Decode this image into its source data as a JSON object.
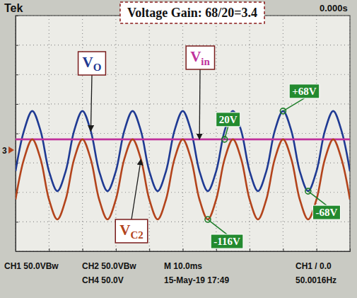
{
  "chart_data": {
    "type": "line",
    "title": "Voltage Gain: 68/20=3.4",
    "x": [
      0,
      2.5,
      5,
      7.5,
      10,
      12.5,
      15,
      17.5,
      20,
      22.5,
      25,
      27.5,
      30,
      32.5,
      35,
      37.5,
      40,
      42.5,
      45,
      47.5,
      50,
      52.5,
      55,
      57.5,
      60,
      62.5,
      65,
      67.5,
      70,
      72.5,
      75,
      77.5,
      80,
      82.5,
      85,
      87.5,
      90,
      92.5,
      95,
      97.5,
      100
    ],
    "xlim": [
      0,
      100
    ],
    "xticks": [
      0,
      10,
      20,
      30,
      40,
      50,
      60,
      70,
      80,
      90,
      100
    ],
    "ylim": [
      -170,
      230
    ],
    "yticks": [
      -170,
      -120,
      -70,
      -20,
      30,
      80,
      130,
      180,
      230
    ],
    "grid": true,
    "tick_labels": false,
    "series": [
      {
        "name": "VO",
        "color": "#1f3a93",
        "values": [
          -34,
          34,
          68,
          34,
          -34,
          -68,
          -34,
          34,
          68,
          34,
          -34,
          -68,
          -34,
          34,
          68,
          34,
          -34,
          -68,
          -34,
          34,
          68,
          34,
          -34,
          -68,
          -34,
          34,
          68,
          34,
          -34,
          -68,
          -34,
          34,
          68,
          34,
          -34,
          -68,
          -34,
          34,
          68,
          34,
          -34
        ]
      },
      {
        "name": "Vin",
        "color": "#c0329c",
        "values": [
          20,
          20,
          20,
          20,
          20,
          20,
          20,
          20,
          20,
          20,
          20,
          20,
          20,
          20,
          20,
          20,
          20,
          20,
          20,
          20,
          20,
          20,
          20,
          20,
          20,
          20,
          20,
          20,
          20,
          20,
          20,
          20,
          20,
          20,
          20,
          20,
          20,
          20,
          20,
          20,
          20
        ]
      },
      {
        "name": "VC2",
        "color": "#b3441c",
        "values": [
          -82,
          -14,
          20,
          -14,
          -82,
          -116,
          -82,
          -14,
          20,
          -14,
          -82,
          -116,
          -82,
          -14,
          20,
          -14,
          -82,
          -116,
          -82,
          -14,
          20,
          -14,
          -82,
          -116,
          -82,
          -14,
          20,
          -14,
          -82,
          -116,
          -82,
          -14,
          20,
          -14,
          -82,
          -116,
          -82,
          -14,
          20,
          -14,
          -82
        ]
      }
    ],
    "annotations": [
      {
        "text": "20V",
        "x": 62.5,
        "y": 20
      },
      {
        "text": "+68V",
        "x": 80,
        "y": 68
      },
      {
        "text": "-116V",
        "x": 57.5,
        "y": -116
      },
      {
        "text": "-68V",
        "x": 87.5,
        "y": -68
      }
    ]
  },
  "scope_screen": {
    "brand": "Tek",
    "time_position": "0.000s",
    "channel_marker": "3",
    "status": [
      "CH1 50.0VBw",
      "CH2 50.0VBw",
      "M 10.0ms",
      "CH1 / 0.0",
      "CH4 50.0V",
      "15-May-19 17:49",
      "50.0016Hz"
    ]
  }
}
